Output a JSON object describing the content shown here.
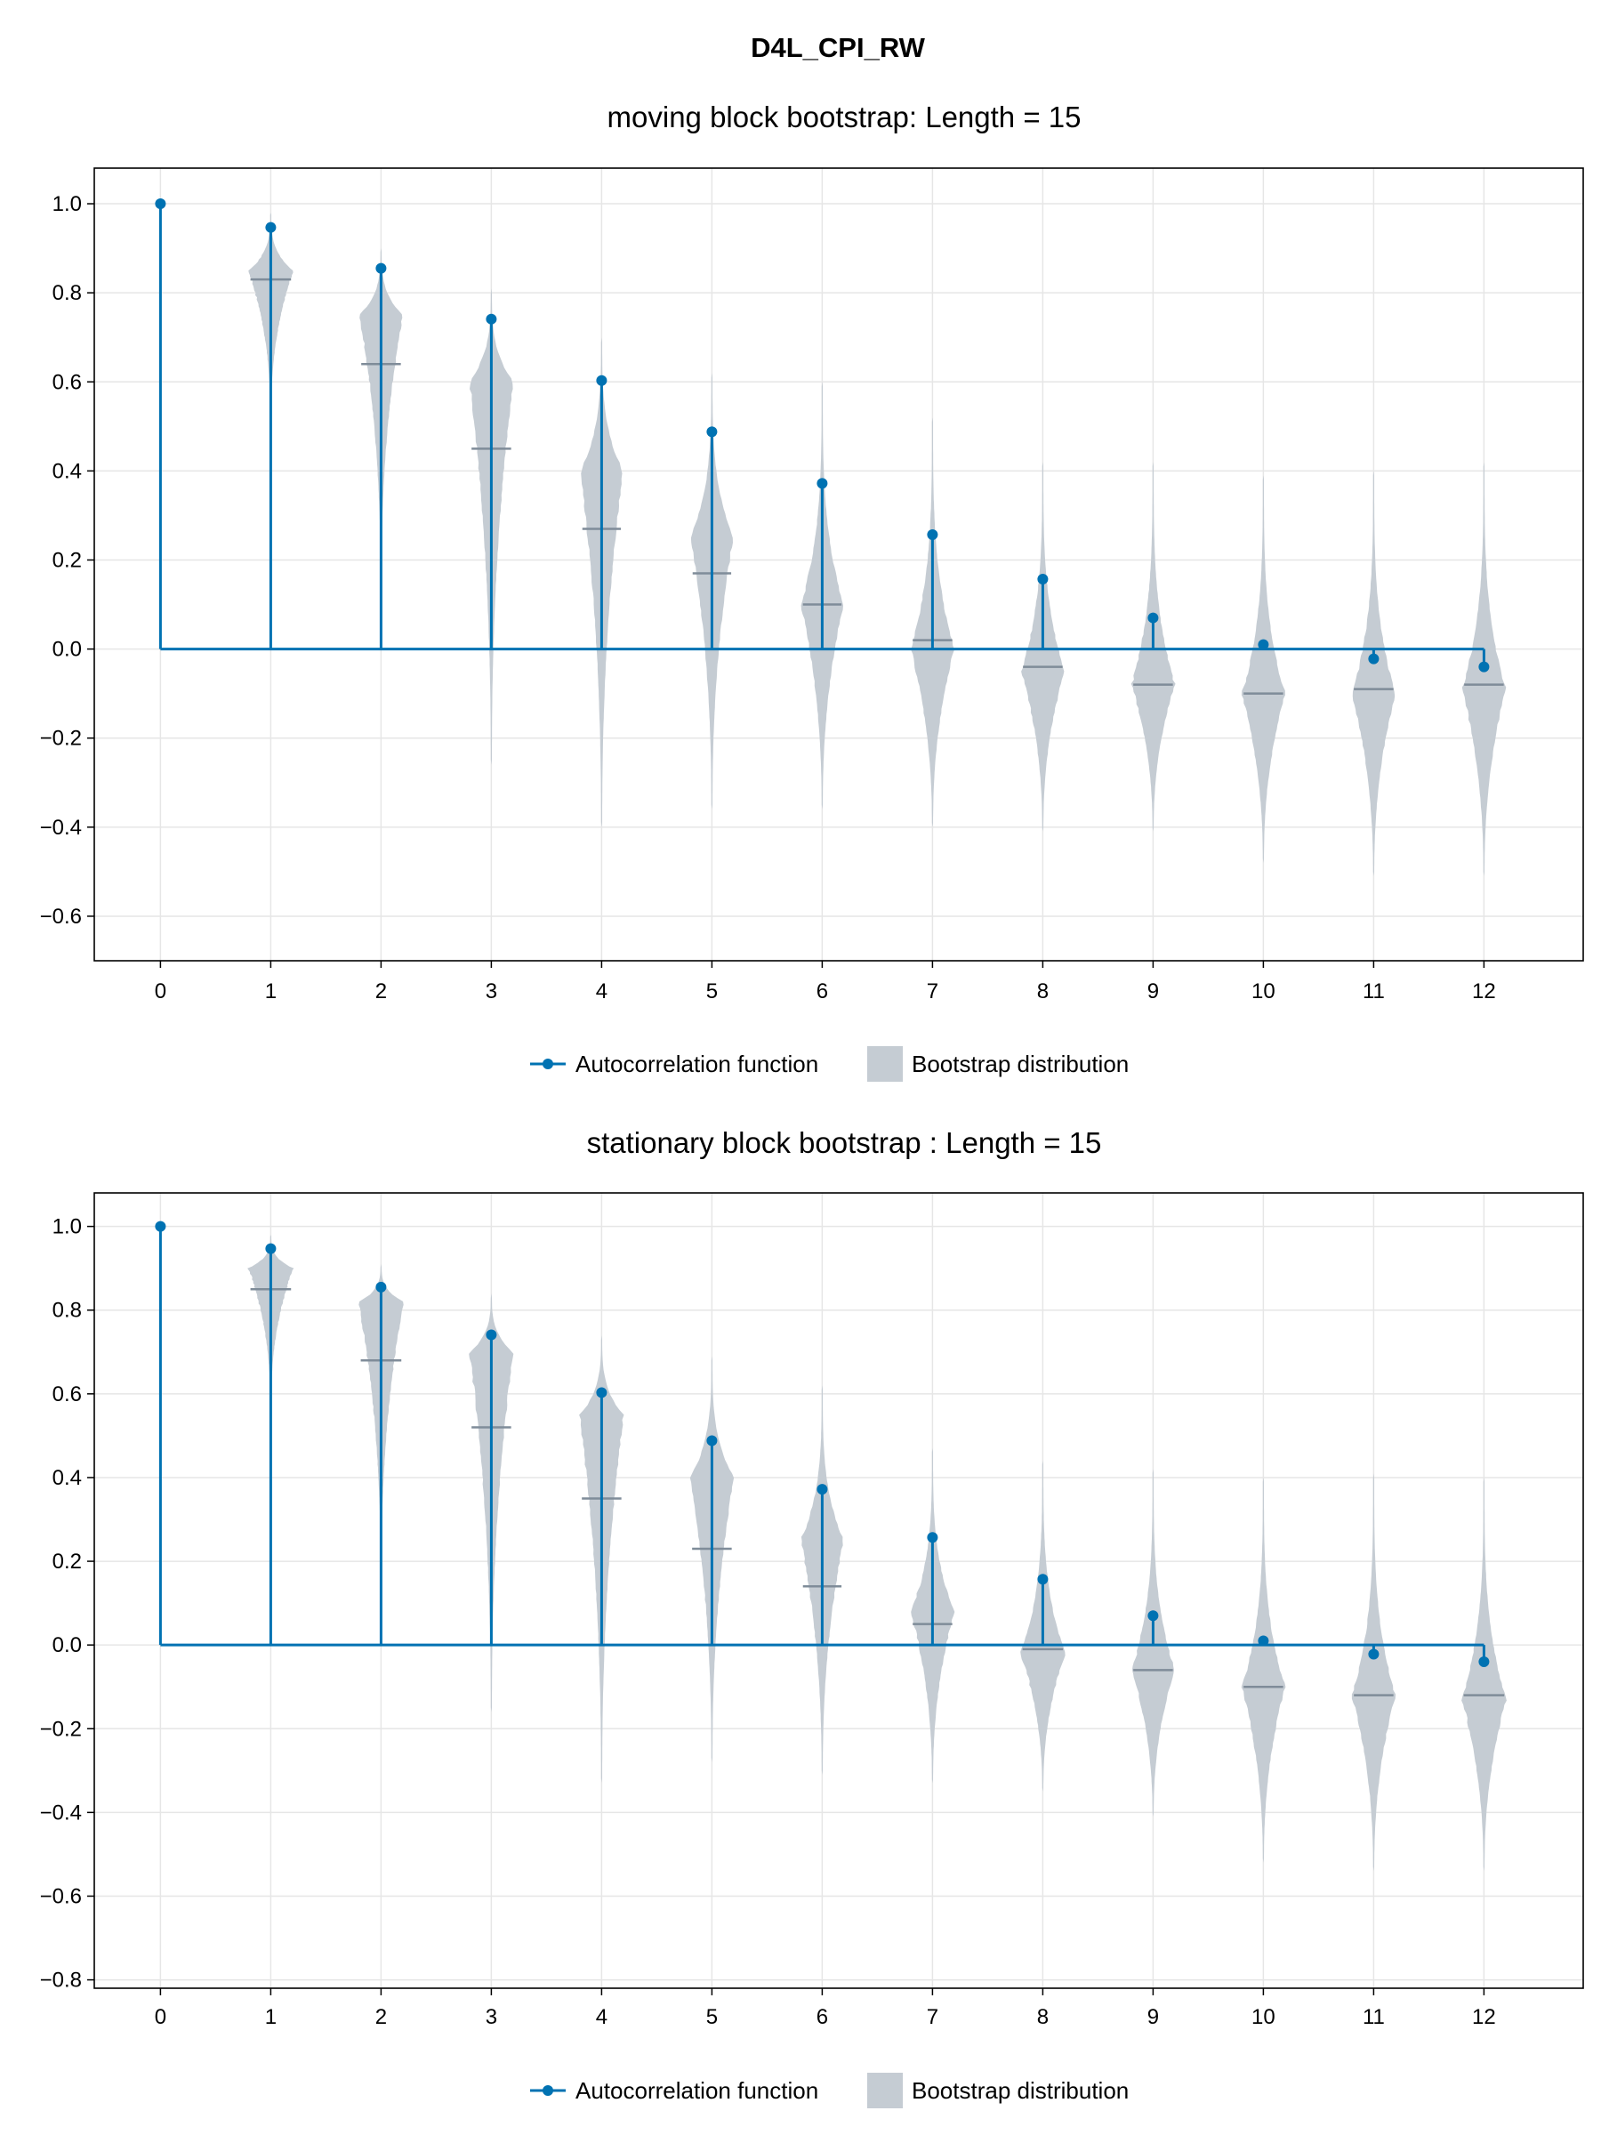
{
  "figure": {
    "title": "D4L_CPI_RW",
    "colors": {
      "acf": "#0072b2",
      "violin": "#c5ccd3",
      "median": "#7f8c99",
      "grid": "#e6e6e6"
    }
  },
  "legend": {
    "acf_label": "Autocorrelation function",
    "bootstrap_label": "Bootstrap distribution"
  },
  "chart_data": [
    {
      "type": "violin",
      "title": "moving block bootstrap: Length = 15",
      "xlabel": "",
      "ylabel": "",
      "xlim": [
        -0.6,
        12.9
      ],
      "ylim": [
        -0.7,
        1.08
      ],
      "grid": true,
      "legend_position": "bottom-center",
      "x_ticks": [
        0,
        1,
        2,
        3,
        4,
        5,
        6,
        7,
        8,
        9,
        10,
        11,
        12
      ],
      "y_ticks": [
        -0.6,
        -0.4,
        -0.2,
        0.0,
        0.2,
        0.4,
        0.6,
        0.8,
        1.0
      ],
      "y_tick_labels": [
        "−0.6",
        "−0.4",
        "−0.2",
        "0.0",
        "0.2",
        "0.4",
        "0.6",
        "0.8",
        "1.0"
      ],
      "acf": {
        "name": "Autocorrelation function",
        "x": [
          0,
          1,
          2,
          3,
          4,
          5,
          6,
          7,
          8,
          9,
          10,
          11,
          12
        ],
        "y": [
          1.0,
          0.947,
          0.855,
          0.741,
          0.603,
          0.488,
          0.372,
          0.257,
          0.157,
          0.07,
          0.01,
          -0.022,
          -0.04
        ]
      },
      "bootstrap": [
        {
          "lag": 1,
          "min": 0.53,
          "max": 0.98,
          "median": 0.83,
          "peak": 0.85,
          "width": 0.4
        },
        {
          "lag": 2,
          "min": 0.16,
          "max": 0.9,
          "median": 0.64,
          "peak": 0.75,
          "width": 0.39
        },
        {
          "lag": 3,
          "min": -0.26,
          "max": 0.81,
          "median": 0.45,
          "peak": 0.6,
          "width": 0.39
        },
        {
          "lag": 4,
          "min": -0.4,
          "max": 0.7,
          "median": 0.27,
          "peak": 0.4,
          "width": 0.38
        },
        {
          "lag": 5,
          "min": -0.36,
          "max": 0.62,
          "median": 0.17,
          "peak": 0.25,
          "width": 0.38
        },
        {
          "lag": 6,
          "min": -0.36,
          "max": 0.6,
          "median": 0.1,
          "peak": 0.1,
          "width": 0.38
        },
        {
          "lag": 7,
          "min": -0.4,
          "max": 0.52,
          "median": 0.02,
          "peak": 0.0,
          "width": 0.39
        },
        {
          "lag": 8,
          "min": -0.41,
          "max": 0.42,
          "median": -0.04,
          "peak": -0.05,
          "width": 0.39
        },
        {
          "lag": 9,
          "min": -0.41,
          "max": 0.42,
          "median": -0.08,
          "peak": -0.08,
          "width": 0.39
        },
        {
          "lag": 10,
          "min": -0.48,
          "max": 0.39,
          "median": -0.1,
          "peak": -0.1,
          "width": 0.39
        },
        {
          "lag": 11,
          "min": -0.51,
          "max": 0.4,
          "median": -0.09,
          "peak": -0.1,
          "width": 0.39
        },
        {
          "lag": 12,
          "min": -0.51,
          "max": 0.42,
          "median": -0.08,
          "peak": -0.09,
          "width": 0.39
        }
      ]
    },
    {
      "type": "violin",
      "title": "stationary block bootstrap : Length = 15",
      "xlabel": "",
      "ylabel": "",
      "xlim": [
        -0.6,
        12.9
      ],
      "ylim": [
        -0.82,
        1.08
      ],
      "grid": true,
      "legend_position": "bottom-center",
      "x_ticks": [
        0,
        1,
        2,
        3,
        4,
        5,
        6,
        7,
        8,
        9,
        10,
        11,
        12
      ],
      "y_ticks": [
        -0.8,
        -0.6,
        -0.4,
        -0.2,
        0.0,
        0.2,
        0.4,
        0.6,
        0.8,
        1.0
      ],
      "y_tick_labels": [
        "−0.8",
        "−0.6",
        "−0.4",
        "−0.2",
        "0.0",
        "0.2",
        "0.4",
        "0.6",
        "0.8",
        "1.0"
      ],
      "acf": {
        "name": "Autocorrelation function",
        "x": [
          0,
          1,
          2,
          3,
          4,
          5,
          6,
          7,
          8,
          9,
          10,
          11,
          12
        ],
        "y": [
          1.0,
          0.947,
          0.855,
          0.741,
          0.603,
          0.488,
          0.372,
          0.257,
          0.157,
          0.07,
          0.01,
          -0.022,
          -0.04
        ]
      },
      "bootstrap": [
        {
          "lag": 1,
          "min": 0.58,
          "max": 0.98,
          "median": 0.85,
          "peak": 0.9,
          "width": 0.4
        },
        {
          "lag": 2,
          "min": 0.18,
          "max": 0.91,
          "median": 0.68,
          "peak": 0.82,
          "width": 0.4
        },
        {
          "lag": 3,
          "min": -0.16,
          "max": 0.84,
          "median": 0.52,
          "peak": 0.7,
          "width": 0.39
        },
        {
          "lag": 4,
          "min": -0.33,
          "max": 0.74,
          "median": 0.35,
          "peak": 0.55,
          "width": 0.39
        },
        {
          "lag": 5,
          "min": -0.28,
          "max": 0.69,
          "median": 0.23,
          "peak": 0.4,
          "width": 0.39
        },
        {
          "lag": 6,
          "min": -0.31,
          "max": 0.62,
          "median": 0.14,
          "peak": 0.25,
          "width": 0.38
        },
        {
          "lag": 7,
          "min": -0.33,
          "max": 0.47,
          "median": 0.05,
          "peak": 0.08,
          "width": 0.39
        },
        {
          "lag": 8,
          "min": -0.35,
          "max": 0.44,
          "median": -0.01,
          "peak": -0.02,
          "width": 0.4
        },
        {
          "lag": 9,
          "min": -0.41,
          "max": 0.42,
          "median": -0.06,
          "peak": -0.06,
          "width": 0.39
        },
        {
          "lag": 10,
          "min": -0.52,
          "max": 0.4,
          "median": -0.1,
          "peak": -0.1,
          "width": 0.39
        },
        {
          "lag": 11,
          "min": -0.54,
          "max": 0.41,
          "median": -0.12,
          "peak": -0.12,
          "width": 0.39
        },
        {
          "lag": 12,
          "min": -0.54,
          "max": 0.4,
          "median": -0.12,
          "peak": -0.13,
          "width": 0.4
        }
      ]
    }
  ]
}
